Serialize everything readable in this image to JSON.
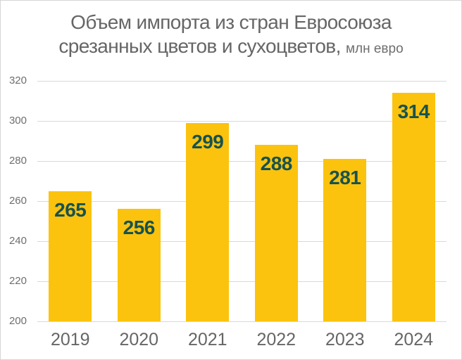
{
  "title": {
    "line1": "Объем импорта из стран Евросоюза",
    "line2": "срезанных цветов и сухоцветов,",
    "unit": "млн евро"
  },
  "chart_data": {
    "type": "bar",
    "title": "Объем импорта из стран Евросоюза срезанных цветов и сухоцветов, млн евро",
    "categories": [
      "2019",
      "2020",
      "2021",
      "2022",
      "2023",
      "2024"
    ],
    "values": [
      265,
      256,
      299,
      288,
      281,
      314
    ],
    "xlabel": "",
    "ylabel": "",
    "ylim": [
      200,
      320
    ],
    "yticks": [
      200,
      220,
      240,
      260,
      280,
      300,
      320
    ],
    "grid": true,
    "legend": false,
    "bar_color": "#FBC30E",
    "value_label_color": "#17524E",
    "axis_text_color": "#6E6E6E",
    "title_color": "#666666",
    "grid_color": "#D9D9D9",
    "background_color": "#FFFFFF"
  }
}
